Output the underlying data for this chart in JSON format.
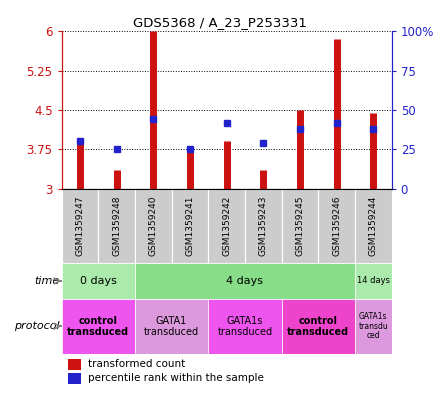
{
  "title": "GDS5368 / A_23_P253331",
  "samples": [
    "GSM1359247",
    "GSM1359248",
    "GSM1359240",
    "GSM1359241",
    "GSM1359242",
    "GSM1359243",
    "GSM1359245",
    "GSM1359246",
    "GSM1359244"
  ],
  "transformed_counts": [
    3.85,
    3.35,
    6.0,
    3.7,
    3.9,
    3.35,
    4.5,
    5.85,
    4.45
  ],
  "percentile_ranks": [
    30,
    25,
    44,
    25,
    42,
    29,
    38,
    42,
    38
  ],
  "y_min": 3.0,
  "y_max": 6.0,
  "y_ticks": [
    3.0,
    3.75,
    4.5,
    5.25,
    6.0
  ],
  "y_tick_labels": [
    "3",
    "3.75",
    "4.5",
    "5.25",
    "6"
  ],
  "y_right_ticks": [
    0,
    25,
    50,
    75,
    100
  ],
  "y_right_labels": [
    "0",
    "25",
    "50",
    "75",
    "100%"
  ],
  "bar_color": "#cc1111",
  "dot_color": "#2222cc",
  "sample_box_color": "#cccccc",
  "time_groups": [
    {
      "label": "0 days",
      "start": 0,
      "end": 2,
      "color": "#aaeaaa"
    },
    {
      "label": "4 days",
      "start": 2,
      "end": 8,
      "color": "#88dd88"
    },
    {
      "label": "14 days",
      "start": 8,
      "end": 9,
      "color": "#aaeaaa"
    }
  ],
  "protocol_groups": [
    {
      "label": "control\ntransduced",
      "start": 0,
      "end": 2,
      "color": "#ee55ee",
      "bold": true
    },
    {
      "label": "GATA1\ntransduced",
      "start": 2,
      "end": 4,
      "color": "#dd99dd",
      "bold": false
    },
    {
      "label": "GATA1s\ntransduced",
      "start": 4,
      "end": 6,
      "color": "#ee55ee",
      "bold": false
    },
    {
      "label": "control\ntransduced",
      "start": 6,
      "end": 8,
      "color": "#ee44cc",
      "bold": true
    },
    {
      "label": "GATA1s\ntransdu\nced",
      "start": 8,
      "end": 9,
      "color": "#dd99dd",
      "bold": false
    }
  ],
  "time_label": "time",
  "protocol_label": "protocol",
  "legend_labels": [
    "transformed count",
    "percentile rank within the sample"
  ]
}
